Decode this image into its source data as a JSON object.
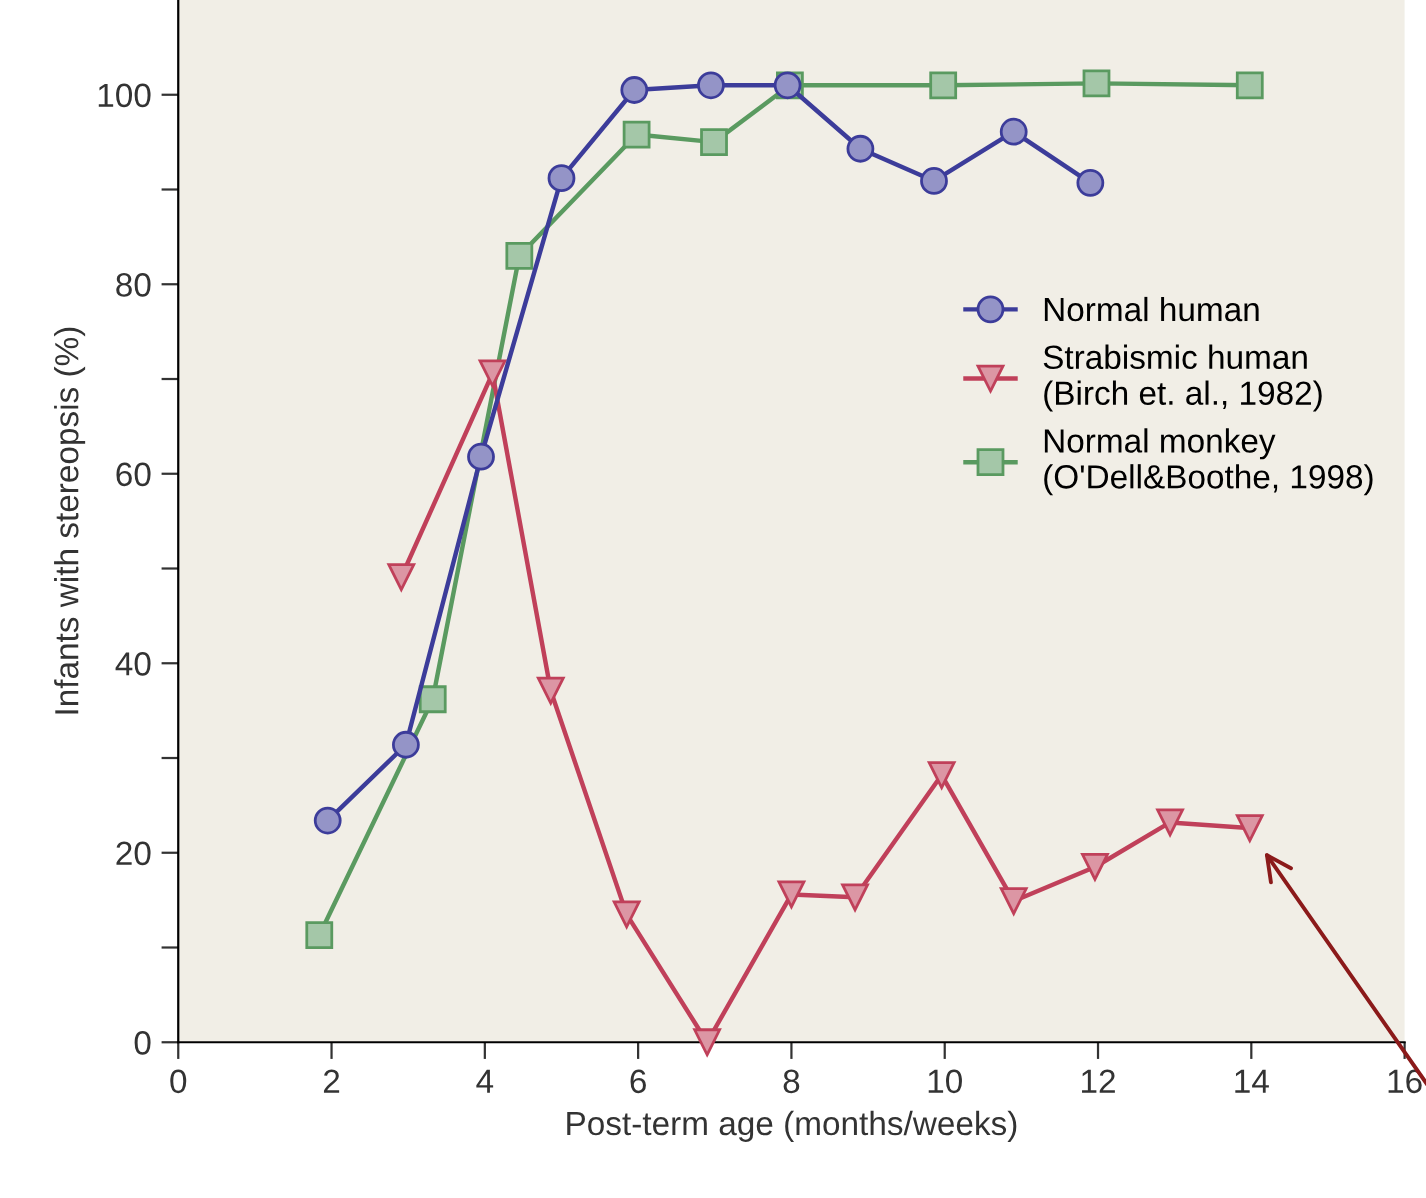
{
  "chart_data": {
    "type": "line",
    "xlabel": "Post-term age (months/weeks)",
    "ylabel": "Infants with stereopsis (%)",
    "xlim": [
      0,
      16
    ],
    "xticks": [
      0,
      2,
      4,
      6,
      8,
      10,
      12,
      14,
      16
    ],
    "ylim": [
      0,
      110
    ],
    "yticks": [
      0,
      {
        "value": 10,
        "label": null
      },
      20,
      {
        "value": 30,
        "label": null
      },
      40,
      {
        "value": 50,
        "label": null
      },
      60,
      {
        "value": 70,
        "label": null
      },
      80,
      {
        "value": 90,
        "label": null
      },
      100
    ],
    "grid": false,
    "legend": "right",
    "line_style": "solid",
    "series": [
      {
        "name": "Normal human",
        "color": "#3c3c9a",
        "marker": "circle",
        "x": [
          1.95,
          2.97,
          3.95,
          5.0,
          5.95,
          6.95,
          7.95,
          8.9,
          9.86,
          10.9,
          11.9
        ],
        "values": [
          23.4,
          31.4,
          61.8,
          91.2,
          100.5,
          101,
          101,
          94.3,
          90.9,
          96.1,
          90.7
        ]
      },
      {
        "name": "Strabismic human\n(Birch et. al., 1982)",
        "color": "#c0405a",
        "marker": "triangle",
        "x": [
          2.91,
          4.1,
          4.86,
          5.85,
          6.9,
          8.0,
          8.83,
          9.96,
          10.9,
          11.96,
          12.94,
          13.98
        ],
        "values": [
          49.1,
          70.6,
          37.1,
          13.5,
          0,
          15.6,
          15.3,
          28.2,
          14.9,
          18.5,
          23.2,
          22.6
        ]
      },
      {
        "name": "Normal monkey\n(O'Dell&Boothe, 1998)",
        "color": "#5a9a60",
        "marker": "square",
        "x": [
          1.84,
          3.32,
          4.45,
          5.98,
          6.99,
          7.98,
          9.98,
          11.98,
          13.98
        ],
        "values": [
          11.3,
          36.2,
          83,
          95.8,
          95,
          101,
          101,
          101.2,
          101
        ]
      }
    ]
  }
}
